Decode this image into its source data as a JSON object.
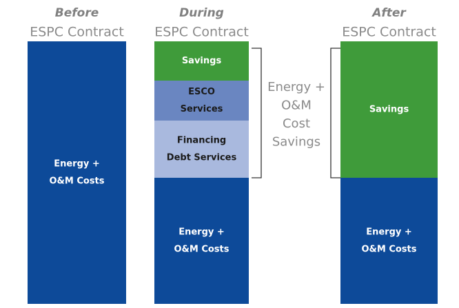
{
  "columns": [
    {
      "heading": "Before",
      "subheading": "ESPC Contract",
      "blocks": [
        {
          "lines": [
            "Energy +",
            "O&M Costs"
          ]
        }
      ]
    },
    {
      "heading": "During",
      "subheading": "ESPC Contract",
      "blocks": [
        {
          "lines": [
            "Savings"
          ]
        },
        {
          "lines": [
            "ESCO",
            "Services"
          ]
        },
        {
          "lines": [
            "Financing",
            "Debt Services"
          ]
        },
        {
          "lines": [
            "Energy +",
            "O&M Costs"
          ]
        }
      ]
    },
    {
      "heading": "After",
      "subheading": "ESPC Contract",
      "blocks": [
        {
          "lines": [
            "Savings"
          ]
        },
        {
          "lines": [
            "Energy +",
            "O&M Costs"
          ]
        }
      ]
    }
  ],
  "annotation": {
    "lines": [
      "Energy +",
      "O&M",
      "Cost",
      "Savings"
    ]
  }
}
